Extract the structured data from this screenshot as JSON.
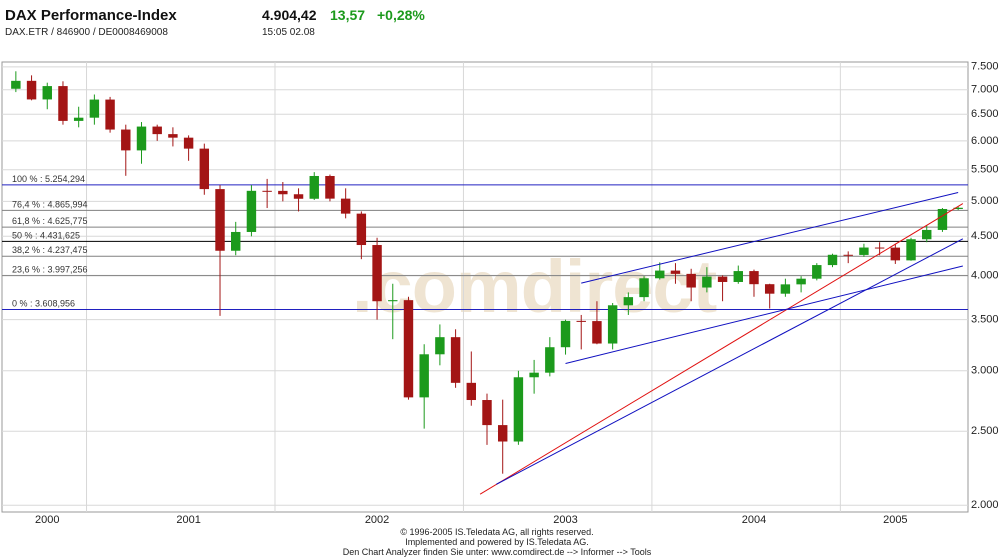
{
  "header": {
    "title": "DAX Performance-Index",
    "subtitle": "DAX.ETR  /  846900  /  DE0008469008",
    "price": "4.904,42",
    "change": "13,57",
    "change_pct": "+0,28%",
    "time": "15:05   02.08"
  },
  "chart_data": {
    "type": "candlestick",
    "log_scale": true,
    "grid": true,
    "up_color": "#1c9a1c",
    "down_color": "#a31515",
    "categories": [
      null,
      null,
      "2000",
      null,
      null,
      null,
      null,
      null,
      null,
      null,
      null,
      "2001",
      null,
      null,
      null,
      null,
      null,
      null,
      null,
      null,
      null,
      null,
      null,
      "2002",
      null,
      null,
      null,
      null,
      null,
      null,
      null,
      null,
      null,
      null,
      null,
      "2003",
      null,
      null,
      null,
      null,
      null,
      null,
      null,
      null,
      null,
      null,
      null,
      "2004",
      null,
      null,
      null,
      null,
      null,
      null,
      null,
      null,
      "2005",
      null,
      null,
      null,
      null
    ],
    "open": [
      7020,
      7190,
      6798,
      7077,
      6372,
      6434,
      6795,
      6208,
      5830,
      6264,
      6123,
      6058,
      5861,
      5188,
      4308,
      4559,
      5161,
      5160,
      5108,
      5039,
      5397,
      5041,
      4818,
      4383,
      3700,
      3712,
      2769,
      3153,
      3320,
      2893,
      2747,
      2547,
      2424,
      2942,
      2983,
      3221,
      3487,
      3485,
      3257,
      3655,
      3746,
      3965,
      4058,
      4018,
      3856,
      3985,
      3921,
      4052,
      3895,
      3785,
      3893,
      3960,
      4126,
      4256,
      4254,
      4350,
      4349,
      4185,
      4460,
      4587,
      4886
    ],
    "high": [
      7400,
      7310,
      7150,
      7180,
      6650,
      6900,
      6850,
      6300,
      6350,
      6300,
      6250,
      6100,
      5950,
      5250,
      4700,
      5250,
      5350,
      5300,
      5200,
      5460,
      5420,
      5200,
      4850,
      4480,
      3900,
      3750,
      3250,
      3450,
      3400,
      3180,
      2800,
      2750,
      3000,
      3100,
      3320,
      3500,
      3550,
      3700,
      3680,
      3800,
      3990,
      4160,
      4150,
      4080,
      4100,
      4000,
      4120,
      4070,
      3900,
      3960,
      3990,
      4150,
      4270,
      4300,
      4400,
      4420,
      4400,
      4480,
      4650,
      4900,
      4920
    ],
    "low": [
      6950,
      6780,
      6600,
      6300,
      6250,
      6300,
      6150,
      5400,
      5600,
      6000,
      5900,
      5650,
      5100,
      3540,
      4250,
      4500,
      4900,
      5000,
      4850,
      5020,
      5000,
      4750,
      4200,
      3500,
      3300,
      2750,
      2520,
      3050,
      2850,
      2700,
      2400,
      2200,
      2400,
      2800,
      2950,
      3150,
      3200,
      3250,
      3200,
      3550,
      3700,
      3950,
      3900,
      3700,
      3800,
      3700,
      3900,
      3750,
      3620,
      3750,
      3800,
      3940,
      4100,
      4150,
      4230,
      4250,
      4140,
      4180,
      4420,
      4560,
      4870
    ],
    "close": [
      7190,
      6798,
      7077,
      6372,
      6434,
      6795,
      6208,
      5830,
      6264,
      6123,
      6058,
      5861,
      5188,
      4308,
      4559,
      5161,
      5160,
      5108,
      5039,
      5397,
      5041,
      4818,
      4383,
      3700,
      3712,
      2769,
      3153,
      3320,
      2893,
      2747,
      2547,
      2424,
      2942,
      2983,
      3221,
      3487,
      3485,
      3257,
      3655,
      3746,
      3965,
      4058,
      4018,
      3856,
      3985,
      3921,
      4052,
      3895,
      3785,
      3893,
      3960,
      4126,
      4256,
      4254,
      4350,
      4349,
      4185,
      4460,
      4587,
      4886,
      4904
    ],
    "ylim": [
      1960,
      7610
    ],
    "yticks": [
      {
        "value": 2000,
        "label": "2.000"
      },
      {
        "value": 2500,
        "label": "2.500"
      },
      {
        "value": 3000,
        "label": "3.000"
      },
      {
        "value": 3500,
        "label": "3.500"
      },
      {
        "value": 4000,
        "label": "4.000"
      },
      {
        "value": 4500,
        "label": "4.500"
      },
      {
        "value": 5000,
        "label": "5.000"
      },
      {
        "value": 5500,
        "label": "5.500"
      },
      {
        "value": 6000,
        "label": "6.000"
      },
      {
        "value": 6500,
        "label": "6.500"
      },
      {
        "value": 7000,
        "label": "7.000"
      },
      {
        "value": 7500,
        "label": "7.500"
      }
    ],
    "levels": [
      {
        "value": 5254.294,
        "label": "100 % : 5.254,294",
        "color": "#2020c0"
      },
      {
        "value": 4865.994,
        "label": "76,4 % : 4.865,994",
        "color": "#808080"
      },
      {
        "value": 4625.775,
        "label": "61,8 % : 4.625,775",
        "color": "#808080"
      },
      {
        "value": 4431.625,
        "label": "50 % : 4.431,625",
        "color": "#000000"
      },
      {
        "value": 4237.475,
        "label": "38,2 % : 4.237,475",
        "color": "#808080"
      },
      {
        "value": 3997.256,
        "label": "23,6 % : 3.997,256",
        "color": "#808080"
      },
      {
        "value": 3608.956,
        "label": "0 % : 3.608,956",
        "color": "#2020c0"
      }
    ],
    "trendlines": [
      {
        "color": "#e01010",
        "x": [
          29.56,
          60.3
        ],
        "y": [
          2068,
          4967
        ]
      },
      {
        "color": "#1010c0",
        "x": [
          30.6,
          60.3
        ],
        "y": [
          2131,
          4466
        ]
      },
      {
        "color": "#1010c0",
        "x": [
          36.0,
          60.0
        ],
        "y": [
          3908,
          5135
        ]
      },
      {
        "color": "#1010c0",
        "x": [
          35.0,
          60.3
        ],
        "y": [
          3067,
          4115
        ]
      }
    ],
    "watermark": ".comdirect"
  },
  "footer": [
    "© 1996-2005 IS.Teledata AG, all rights reserved.",
    "Implemented and powered by IS.Teledata AG.",
    "Den Chart Analyzer finden Sie unter: www.comdirect.de --> Informer --> Tools"
  ]
}
